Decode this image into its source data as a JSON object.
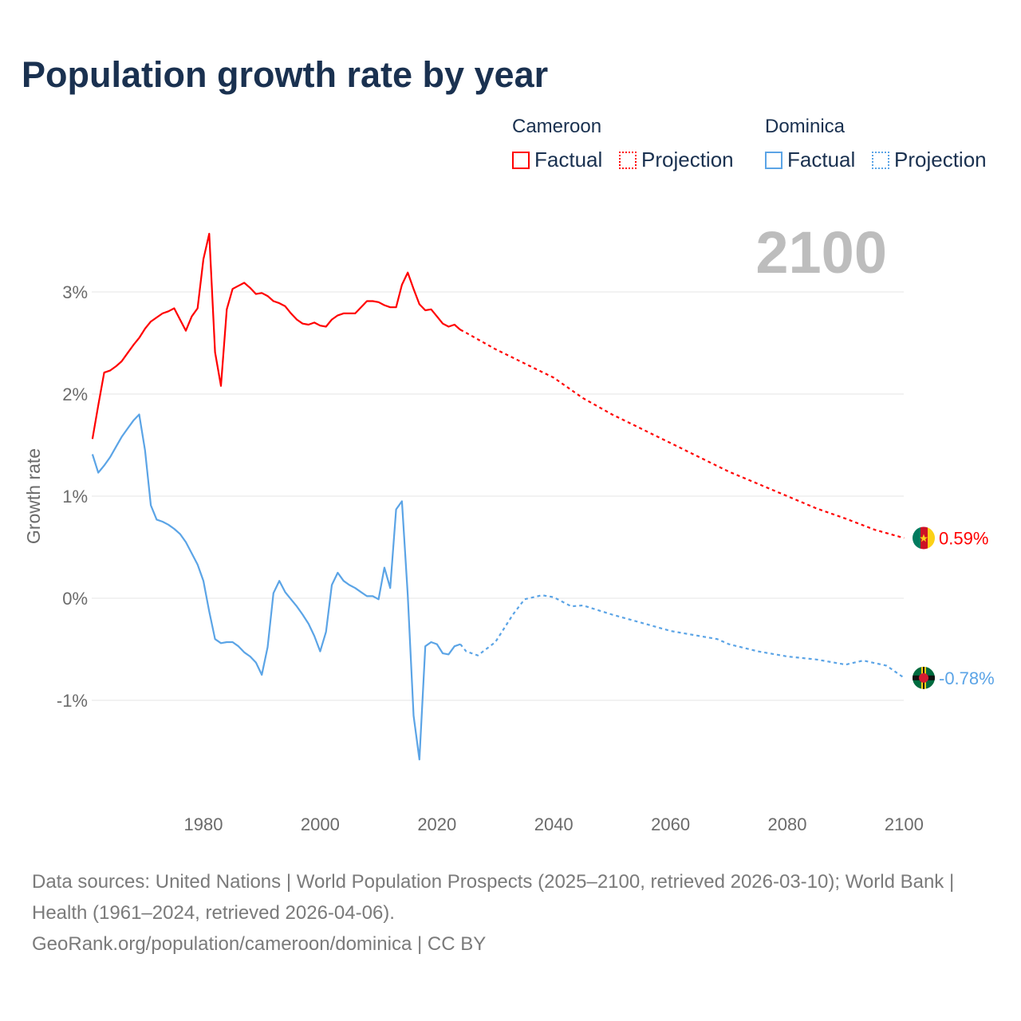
{
  "title": "Population growth rate by year",
  "legend": {
    "groups": [
      {
        "name": "Cameroon",
        "factual": "Factual",
        "projection": "Projection",
        "color": "#ff0000"
      },
      {
        "name": "Dominica",
        "factual": "Factual",
        "projection": "Projection",
        "color": "#5ba4e6"
      }
    ]
  },
  "year_display": "2100",
  "footer": {
    "sources": "Data sources: United Nations | World Population Prospects (2025–2100, retrieved 2026-03-10); World Bank | Health (1961–2024, retrieved 2026-04-06).",
    "credit": "GeoRank.org/population/cameroon/dominica | CC BY"
  },
  "chart_data": {
    "type": "line",
    "title": "Population growth rate by year",
    "xlabel": "",
    "ylabel": "Growth rate",
    "xlim": [
      1961,
      2100
    ],
    "ylim": [
      -1.9,
      3.8
    ],
    "xticks": [
      1980,
      2000,
      2020,
      2040,
      2060,
      2080,
      2100
    ],
    "xtick_labels": [
      "1980",
      "2000",
      "2020",
      "2040",
      "2060",
      "2080",
      "2100"
    ],
    "yticks": [
      3,
      2,
      1,
      0,
      -1
    ],
    "ytick_labels": [
      "3%",
      "2%",
      "1%",
      "0%",
      "-1%"
    ],
    "grid": true,
    "series": [
      {
        "name": "Cameroon",
        "color": "#ff0000",
        "end_label": "0.59%",
        "factual": {
          "x_start": 1961,
          "values": [
            1.56,
            1.89,
            2.21,
            2.23,
            2.27,
            2.32,
            2.4,
            2.48,
            2.55,
            2.64,
            2.71,
            2.75,
            2.79,
            2.81,
            2.84,
            2.73,
            2.62,
            2.76,
            2.84,
            3.32,
            3.57,
            2.41,
            2.08,
            2.83,
            3.03,
            3.06,
            3.09,
            3.04,
            2.98,
            2.99,
            2.96,
            2.91,
            2.89,
            2.86,
            2.79,
            2.73,
            2.69,
            2.68,
            2.7,
            2.67,
            2.66,
            2.73,
            2.77,
            2.79,
            2.79,
            2.79,
            2.85,
            2.91,
            2.91,
            2.9,
            2.87,
            2.85,
            2.85,
            3.07,
            3.19,
            3.03,
            2.88,
            2.82,
            2.83,
            2.76,
            2.69,
            2.66,
            2.68,
            2.63
          ]
        },
        "projection": {
          "x": [
            2024,
            2025,
            2030,
            2035,
            2040,
            2045,
            2050,
            2055,
            2060,
            2065,
            2070,
            2075,
            2080,
            2085,
            2090,
            2095,
            2100
          ],
          "values": [
            2.63,
            2.6,
            2.44,
            2.3,
            2.16,
            1.96,
            1.8,
            1.66,
            1.52,
            1.38,
            1.24,
            1.12,
            1.0,
            0.88,
            0.78,
            0.67,
            0.59
          ]
        }
      },
      {
        "name": "Dominica",
        "color": "#5ba4e6",
        "end_label": "-0.78%",
        "factual": {
          "x_start": 1961,
          "values": [
            1.41,
            1.23,
            1.3,
            1.38,
            1.48,
            1.58,
            1.66,
            1.74,
            1.8,
            1.45,
            0.91,
            0.77,
            0.75,
            0.72,
            0.68,
            0.63,
            0.55,
            0.44,
            0.33,
            0.17,
            -0.13,
            -0.4,
            -0.44,
            -0.43,
            -0.43,
            -0.47,
            -0.53,
            -0.57,
            -0.63,
            -0.75,
            -0.48,
            0.05,
            0.17,
            0.06,
            -0.01,
            -0.08,
            -0.16,
            -0.25,
            -0.37,
            -0.52,
            -0.33,
            0.13,
            0.25,
            0.17,
            0.13,
            0.1,
            0.06,
            0.02,
            0.02,
            -0.01,
            0.3,
            0.1,
            0.87,
            0.95,
            0.03,
            -1.15,
            -1.58,
            -0.47,
            -0.43,
            -0.45,
            -0.54,
            -0.55,
            -0.47,
            -0.45
          ]
        },
        "projection": {
          "x": [
            2024,
            2025,
            2027,
            2030,
            2033,
            2035,
            2038,
            2040,
            2043,
            2045,
            2050,
            2055,
            2060,
            2065,
            2068,
            2070,
            2075,
            2080,
            2085,
            2090,
            2093,
            2097,
            2100
          ],
          "values": [
            -0.45,
            -0.52,
            -0.56,
            -0.43,
            -0.16,
            -0.01,
            0.03,
            0.01,
            -0.08,
            -0.07,
            -0.16,
            -0.24,
            -0.32,
            -0.37,
            -0.4,
            -0.45,
            -0.52,
            -0.57,
            -0.6,
            -0.65,
            -0.61,
            -0.66,
            -0.78
          ]
        }
      }
    ]
  }
}
